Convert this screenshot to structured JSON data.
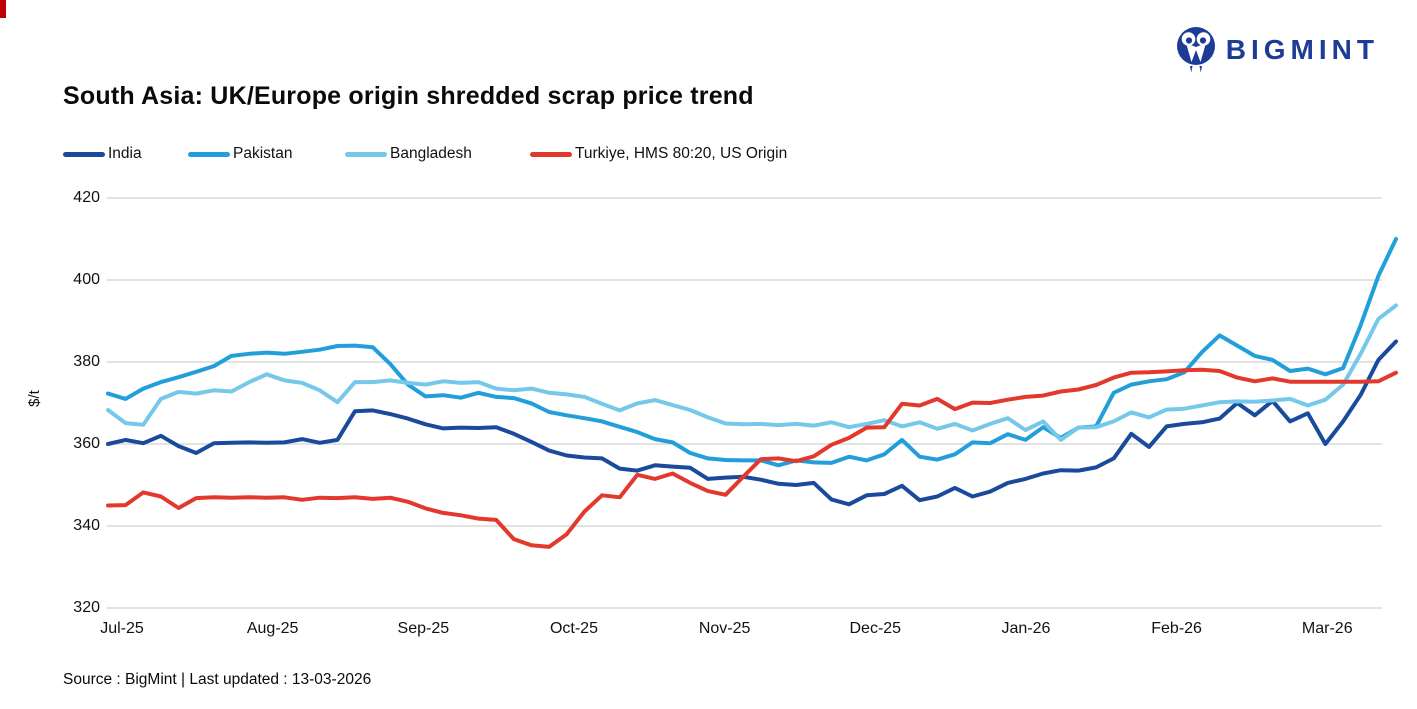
{
  "logo": {
    "text": "BIGMINT",
    "color": "#1d3c96",
    "icon": "bigmint-owl-monogram"
  },
  "title": "South Asia: UK/Europe origin shredded scrap price trend",
  "legend": [
    {
      "label": "India",
      "color": "#1a4a9c"
    },
    {
      "label": "Pakistan",
      "color": "#229fda"
    },
    {
      "label": "Bangladesh",
      "color": "#75c8ea"
    },
    {
      "label": "Turkiye, HMS 80:20, US Origin",
      "color": "#e2382d"
    }
  ],
  "footer": {
    "source": "Source : BigMint | Last updated : 13-03-2026"
  },
  "chart_data": {
    "type": "line",
    "title": "South Asia: UK/Europe origin shredded scrap price trend",
    "xlabel": "",
    "ylabel": "$/t",
    "ylim": [
      320,
      420
    ],
    "yticks": [
      320,
      340,
      360,
      380,
      400,
      420
    ],
    "grid": "horizontal",
    "legend_position": "top-left",
    "x_tick_labels": [
      "Jul-25",
      "Aug-25",
      "Sep-25",
      "Oct-25",
      "Nov-25",
      "Dec-25",
      "Jan-26",
      "Feb-26",
      "Mar-26"
    ],
    "x_start": "2025-07-01",
    "x_end": "2026-03-13",
    "x_frequency": "approx. twice weekly observations (values estimated from plot)",
    "series": [
      {
        "name": "India",
        "color": "#1a4a9c",
        "values": [
          360,
          361,
          360.2,
          362,
          359.5,
          357.8,
          360.2,
          360.3,
          360.4,
          360.3,
          360.4,
          361.2,
          360.3,
          361,
          368,
          368.2,
          367.3,
          366.2,
          364.8,
          363.8,
          364,
          363.9,
          364.1,
          362.5,
          360.5,
          358.4,
          357.2,
          356.7,
          356.5,
          354,
          353.5,
          354.8,
          354.5,
          354.2,
          351.5,
          351.8,
          352,
          351.3,
          350.3,
          350,
          350.5,
          346.5,
          345.3,
          347.5,
          347.8,
          349.8,
          346.3,
          347.2,
          349.3,
          347.2,
          348.4,
          350.5,
          351.5,
          352.8,
          353.6,
          353.5,
          354.3,
          356.5,
          362.5,
          359.3,
          364.3,
          364.9,
          365.3,
          366.2,
          370,
          367,
          370.5,
          365.5,
          367.5,
          360,
          365.5,
          372,
          380.5,
          385
        ]
      },
      {
        "name": "Pakistan",
        "color": "#229fda",
        "values": [
          372.3,
          371,
          373.5,
          375.1,
          376.3,
          377.6,
          379,
          381.5,
          382,
          382.3,
          382,
          382.5,
          383,
          383.9,
          384,
          383.6,
          379.5,
          374.5,
          371.6,
          371.9,
          371.3,
          372.5,
          371.5,
          371.2,
          369.9,
          367.8,
          367,
          366.3,
          365.5,
          364.2,
          362.9,
          361.2,
          360.4,
          357.8,
          356.5,
          356.1,
          356,
          356,
          354.8,
          356,
          355.5,
          355.4,
          356.9,
          356,
          357.5,
          361,
          356.9,
          356.2,
          357.5,
          360.4,
          360.2,
          362.4,
          361,
          364.1,
          361.5,
          364,
          364.3,
          372.5,
          374.5,
          375.3,
          375.8,
          377.5,
          382.4,
          386.5,
          384,
          381.5,
          380.5,
          377.8,
          378.4,
          377,
          378.5,
          389,
          401,
          410
        ]
      },
      {
        "name": "Bangladesh",
        "color": "#75c8ea",
        "values": [
          368.3,
          365.1,
          364.7,
          371,
          372.7,
          372.3,
          373.1,
          372.8,
          375.1,
          377,
          375.5,
          374.9,
          373.1,
          370.2,
          375.1,
          375.1,
          375.5,
          374.9,
          374.5,
          375.3,
          374.9,
          375.1,
          373.5,
          373.1,
          373.5,
          372.5,
          372.1,
          371.5,
          369.8,
          368.2,
          369.9,
          370.7,
          369.5,
          368.3,
          366.5,
          365,
          364.8,
          364.9,
          364.6,
          364.9,
          364.5,
          365.3,
          364.1,
          364.9,
          365.8,
          364.3,
          365.3,
          363.7,
          364.9,
          363.3,
          364.9,
          366.3,
          363.4,
          365.5,
          361,
          364,
          364.1,
          365.5,
          367.7,
          366.5,
          368.4,
          368.6,
          369.4,
          370.2,
          370.4,
          370.3,
          370.6,
          371,
          369.4,
          370.8,
          374.5,
          382,
          390.5,
          393.8
        ]
      },
      {
        "name": "Turkiye, HMS 80:20, US Origin",
        "color": "#e2382d",
        "values": [
          345,
          345.1,
          348.2,
          347.2,
          344.4,
          346.8,
          347,
          346.9,
          347,
          346.9,
          347,
          346.4,
          346.9,
          346.8,
          347,
          346.6,
          346.9,
          345.9,
          344.3,
          343.2,
          342.6,
          341.8,
          341.5,
          336.8,
          335.3,
          334.9,
          338,
          343.5,
          347.5,
          347,
          352.5,
          351.5,
          352.8,
          350.5,
          348.5,
          347.6,
          352,
          356.3,
          356.5,
          355.8,
          357,
          359.8,
          361.5,
          364,
          364.1,
          369.8,
          369.4,
          371,
          368.5,
          370.1,
          370,
          370.8,
          371.5,
          371.8,
          372.8,
          373.3,
          374.4,
          376.2,
          377.4,
          377.5,
          377.7,
          378,
          378.1,
          377.8,
          376.2,
          375.3,
          376,
          375.2,
          375.2,
          375.2,
          375.2,
          375.2,
          375.3,
          377.4
        ]
      }
    ]
  }
}
